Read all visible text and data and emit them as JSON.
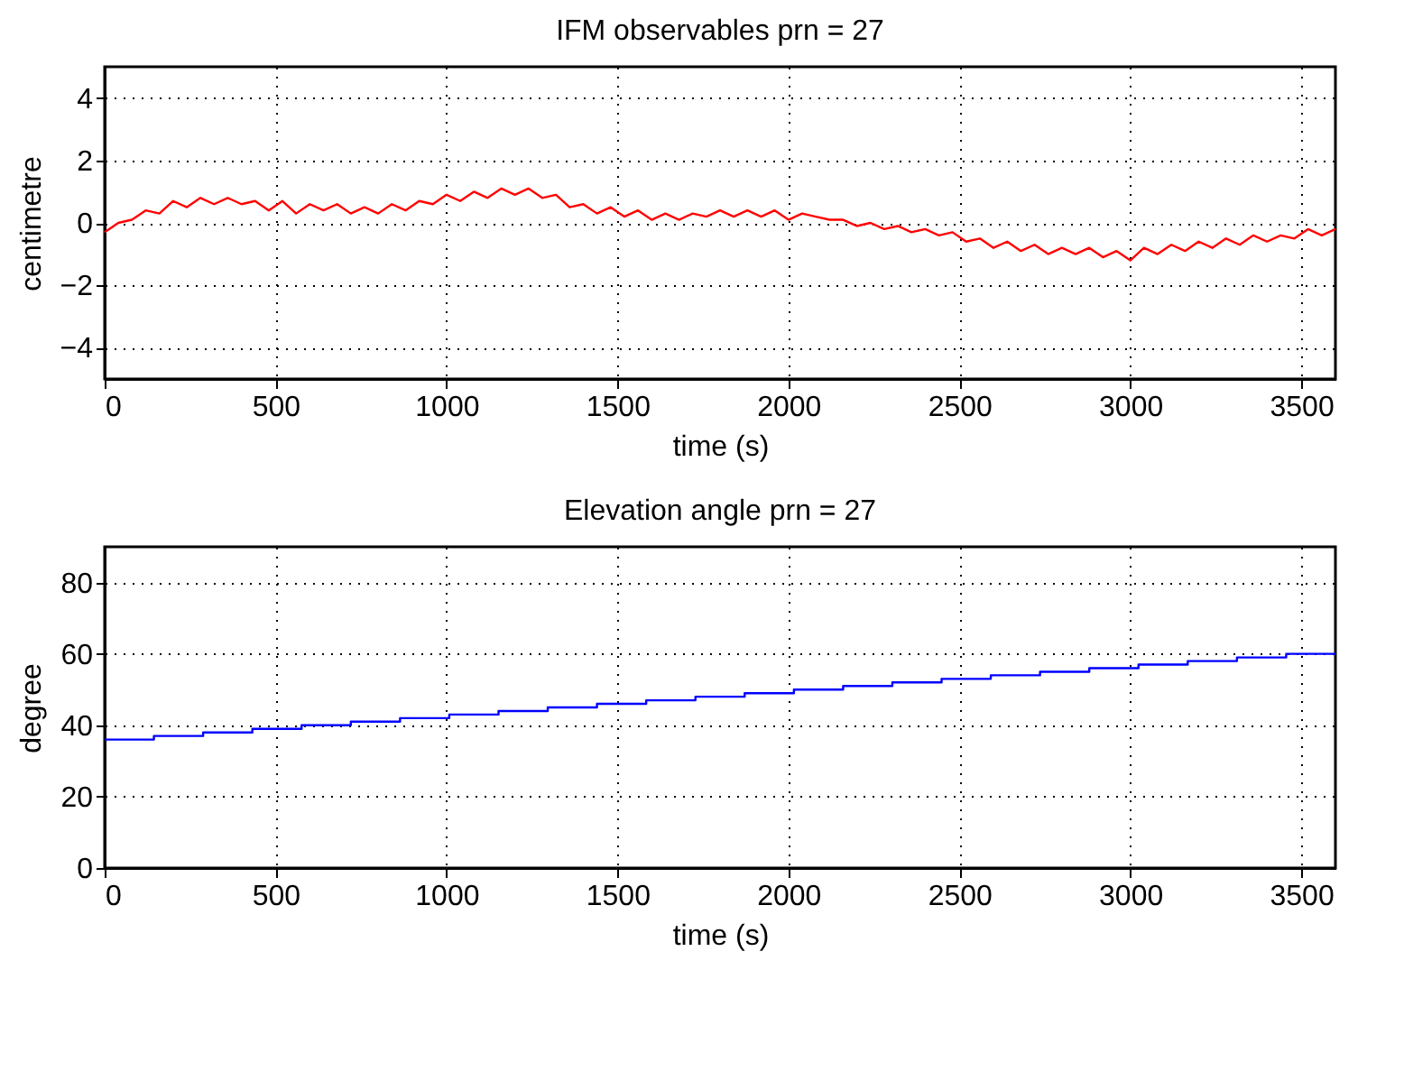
{
  "chart_data": [
    {
      "type": "line",
      "title": "IFM observables prn = 27",
      "xlabel": "time (s)",
      "ylabel": "centimetre",
      "x": [
        0,
        40,
        80,
        120,
        160,
        200,
        240,
        280,
        320,
        360,
        400,
        440,
        480,
        520,
        560,
        600,
        640,
        680,
        720,
        760,
        800,
        840,
        880,
        920,
        960,
        1000,
        1040,
        1080,
        1120,
        1160,
        1200,
        1240,
        1280,
        1320,
        1360,
        1400,
        1440,
        1480,
        1520,
        1560,
        1600,
        1640,
        1680,
        1720,
        1760,
        1800,
        1840,
        1880,
        1920,
        1960,
        2000,
        2040,
        2080,
        2120,
        2160,
        2200,
        2240,
        2280,
        2320,
        2360,
        2400,
        2440,
        2480,
        2520,
        2560,
        2600,
        2640,
        2680,
        2720,
        2760,
        2800,
        2840,
        2880,
        2920,
        2960,
        3000,
        3040,
        3080,
        3120,
        3160,
        3200,
        3240,
        3280,
        3320,
        3360,
        3400,
        3440,
        3480,
        3520,
        3560,
        3600
      ],
      "series": [
        {
          "color": "#ff0000",
          "values": [
            -0.3,
            0.0,
            0.1,
            0.4,
            0.3,
            0.7,
            0.5,
            0.8,
            0.6,
            0.8,
            0.6,
            0.7,
            0.4,
            0.7,
            0.3,
            0.6,
            0.4,
            0.6,
            0.3,
            0.5,
            0.3,
            0.6,
            0.4,
            0.7,
            0.6,
            0.9,
            0.7,
            1.0,
            0.8,
            1.1,
            0.9,
            1.1,
            0.8,
            0.9,
            0.5,
            0.6,
            0.3,
            0.5,
            0.2,
            0.4,
            0.1,
            0.3,
            0.1,
            0.3,
            0.2,
            0.4,
            0.2,
            0.4,
            0.2,
            0.4,
            0.1,
            0.3,
            0.2,
            0.1,
            0.1,
            -0.1,
            0.0,
            -0.2,
            -0.1,
            -0.3,
            -0.2,
            -0.4,
            -0.3,
            -0.6,
            -0.5,
            -0.8,
            -0.6,
            -0.9,
            -0.7,
            -1.0,
            -0.8,
            -1.0,
            -0.8,
            -1.1,
            -0.9,
            -1.2,
            -0.8,
            -1.0,
            -0.7,
            -0.9,
            -0.6,
            -0.8,
            -0.5,
            -0.7,
            -0.4,
            -0.6,
            -0.4,
            -0.5,
            -0.2,
            -0.4,
            -0.2
          ]
        }
      ],
      "xlim": [
        0,
        3600
      ],
      "ylim": [
        -5,
        5
      ],
      "xticks": [
        0,
        500,
        1000,
        1500,
        2000,
        2500,
        3000,
        3500
      ],
      "yticks": [
        -4,
        -2,
        0,
        2,
        4
      ],
      "grid": true
    },
    {
      "type": "step",
      "title": "Elevation angle prn = 27",
      "xlabel": "time (s)",
      "ylabel": "degree",
      "x": [
        0,
        144,
        288,
        432,
        576,
        720,
        864,
        1008,
        1152,
        1296,
        1440,
        1584,
        1728,
        1872,
        2016,
        2160,
        2304,
        2448,
        2592,
        2736,
        2880,
        3024,
        3168,
        3312,
        3456,
        3600
      ],
      "series": [
        {
          "color": "#0000ff",
          "values": [
            36,
            37,
            38,
            39,
            40,
            41,
            42,
            43,
            44,
            45,
            46,
            47,
            48,
            49,
            50,
            51,
            52,
            53,
            54,
            55,
            56,
            57,
            58,
            59,
            60,
            60
          ]
        }
      ],
      "xlim": [
        0,
        3600
      ],
      "ylim": [
        0,
        90
      ],
      "xticks": [
        0,
        500,
        1000,
        1500,
        2000,
        2500,
        3000,
        3500
      ],
      "yticks": [
        0,
        20,
        40,
        60,
        80
      ],
      "grid": true
    }
  ]
}
